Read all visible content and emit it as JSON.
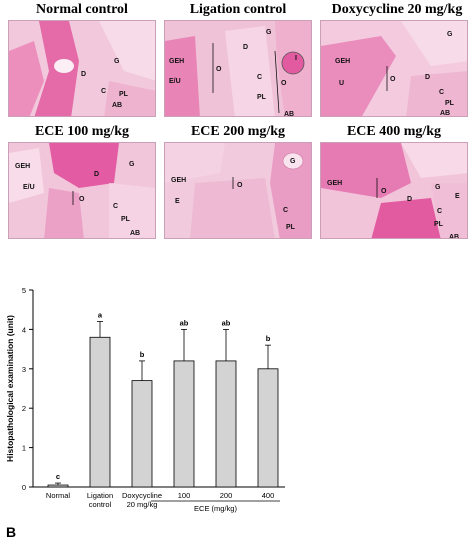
{
  "panels": [
    {
      "title": "Normal control",
      "labels": [
        "D",
        "G",
        "C",
        "PL",
        "AB"
      ]
    },
    {
      "title": "Ligation control",
      "labels": [
        "D",
        "G",
        "GEH",
        "E/U",
        "O",
        "C",
        "O",
        "PL",
        "I",
        "AB"
      ]
    },
    {
      "title": "Doxycycline 20 mg/kg",
      "labels": [
        "G",
        "GEH",
        "U",
        "O",
        "D",
        "C",
        "PL",
        "AB"
      ]
    },
    {
      "title": "ECE 100 mg/kg",
      "labels": [
        "GEH",
        "E/U",
        "D",
        "G",
        "O",
        "C",
        "PL",
        "AB"
      ]
    },
    {
      "title": "ECE 200 mg/kg",
      "labels": [
        "G",
        "GEH",
        "E",
        "O",
        "C",
        "PL"
      ]
    },
    {
      "title": "ECE 400 mg/kg",
      "labels": [
        "GEH",
        "G",
        "E",
        "O",
        "D",
        "C",
        "PL",
        "AB"
      ]
    }
  ],
  "figure_letter": "B",
  "chart_data": {
    "type": "bar",
    "categories": [
      "Normal",
      "Ligation control",
      "Doxycycline 20 mg/kg",
      "100",
      "200",
      "400"
    ],
    "category_lines": [
      [
        "Normal"
      ],
      [
        "Ligation",
        "control"
      ],
      [
        "Doxycycline",
        "20 mg/kg"
      ],
      [
        "100"
      ],
      [
        "200"
      ],
      [
        "400"
      ]
    ],
    "group_label": "ECE (mg/kg)",
    "values": [
      0.05,
      3.8,
      2.7,
      3.2,
      3.2,
      3.0
    ],
    "errors": [
      0.05,
      0.4,
      0.5,
      0.8,
      0.8,
      0.6
    ],
    "significance": [
      "c",
      "a",
      "b",
      "ab",
      "ab",
      "b"
    ],
    "ylabel": "Histopathological examination (unit)",
    "ylim": [
      0,
      5
    ],
    "yticks": [
      0,
      1,
      2,
      3,
      4,
      5
    ],
    "bar_color": "#d3d3d3",
    "grid": false
  }
}
